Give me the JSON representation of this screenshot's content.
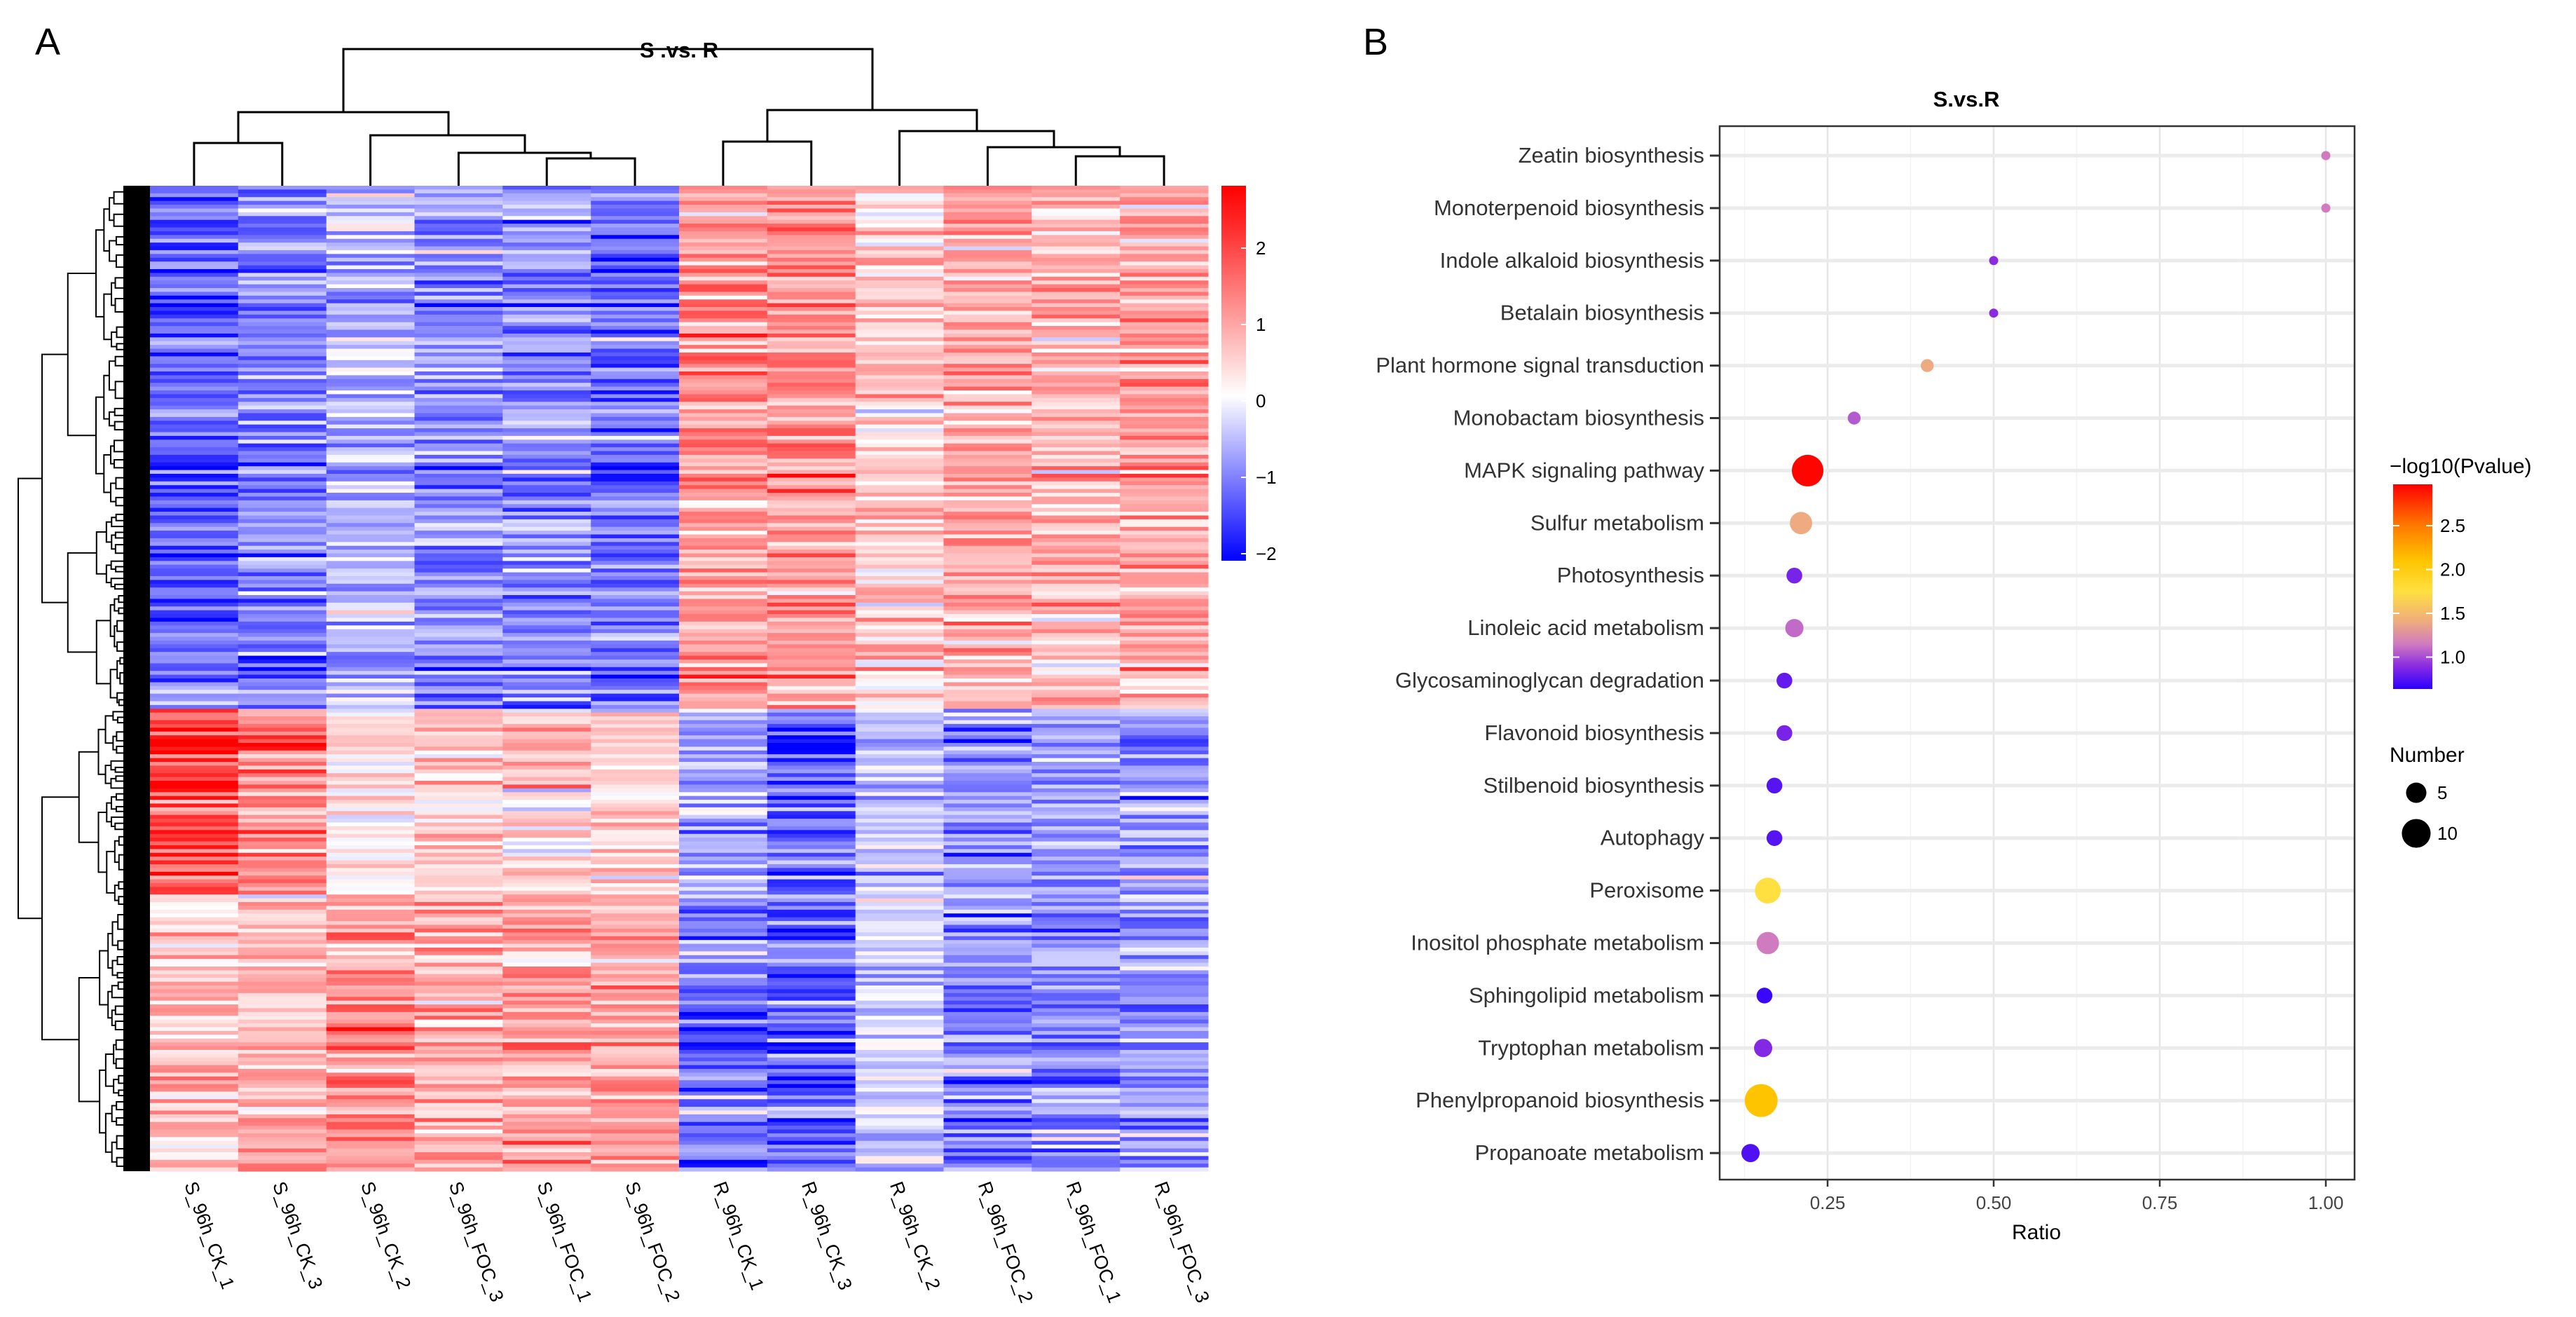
{
  "panels": {
    "a_label": "A",
    "b_label": "B"
  },
  "chart_data": [
    {
      "type": "heatmap",
      "title": "S .vs. R",
      "columns": [
        "S_96h_CK_1",
        "S_96h_CK_3",
        "S_96h_CK_2",
        "S_96h_FOC_3",
        "S_96h_FOC_1",
        "S_96h_FOC_2",
        "R_96h_CK_1",
        "R_96h_CK_3",
        "R_96h_CK_2",
        "R_96h_FOC_2",
        "R_96h_FOC_1",
        "R_96h_FOC_3"
      ],
      "row_clusters": [
        {
          "fraction_of_rows": 0.53,
          "approx_mean_z": [
            -1.3,
            -1.1,
            -0.6,
            -1.1,
            -1.0,
            -1.3,
            1.1,
            1.1,
            0.5,
            0.8,
            0.8,
            0.9
          ]
        },
        {
          "fraction_of_rows": 0.19,
          "approx_mean_z": [
            2.0,
            1.3,
            0.3,
            0.6,
            0.5,
            0.4,
            -1.0,
            -1.4,
            -0.5,
            -1.0,
            -1.0,
            -1.0
          ]
        },
        {
          "fraction_of_rows": 0.28,
          "approx_mean_z": [
            0.6,
            0.7,
            1.1,
            0.9,
            0.9,
            0.9,
            -1.2,
            -1.4,
            -0.3,
            -1.0,
            -1.0,
            -0.9
          ]
        }
      ],
      "colorbar": {
        "ticks": [
          "2",
          "1",
          "0",
          "−1",
          "−2"
        ],
        "tick_values": [
          2,
          1,
          0,
          -1,
          -2
        ],
        "range": [
          -2.2,
          2.8
        ],
        "low_color": "#0000ff",
        "mid_color": "#ffffff",
        "high_color": "#ff0000"
      },
      "row_dendrogram": true,
      "column_dendrogram": true
    },
    {
      "type": "scatter",
      "title": "S.vs.R",
      "xlabel": "Ratio",
      "xlim": [
        0.088,
        1.043
      ],
      "xticks": [
        "0.25",
        "0.50",
        "0.75",
        "1.00"
      ],
      "xtick_values": [
        0.25,
        0.5,
        0.75,
        1.0
      ],
      "grid": true,
      "legend_position": "right",
      "color_legend": {
        "title": "−log10(Pvalue)",
        "ticks": [
          "2.5",
          "2.0",
          "1.5",
          "1.0"
        ],
        "tick_values": [
          2.5,
          2.0,
          1.5,
          1.0
        ],
        "range": [
          0.64,
          2.97
        ],
        "stops": [
          [
            0.64,
            "#2a00ff"
          ],
          [
            0.9,
            "#8a2be2"
          ],
          [
            1.15,
            "#d07ac0"
          ],
          [
            1.4,
            "#eeaa80"
          ],
          [
            1.75,
            "#ffe040"
          ],
          [
            2.1,
            "#ffc400"
          ],
          [
            2.5,
            "#ff7a00"
          ],
          [
            2.97,
            "#ff0000"
          ]
        ]
      },
      "size_legend": {
        "title": "Number",
        "items": [
          {
            "label": "5",
            "value": 5
          },
          {
            "label": "10",
            "value": 10
          }
        ]
      },
      "points": [
        {
          "pathway": "Zeatin biosynthesis",
          "ratio": 1.0,
          "neg_log10_p": 1.15,
          "number": 1
        },
        {
          "pathway": "Monoterpenoid biosynthesis",
          "ratio": 1.0,
          "neg_log10_p": 1.15,
          "number": 1
        },
        {
          "pathway": "Indole alkaloid biosynthesis",
          "ratio": 0.5,
          "neg_log10_p": 0.9,
          "number": 1
        },
        {
          "pathway": "Betalain biosynthesis",
          "ratio": 0.5,
          "neg_log10_p": 0.9,
          "number": 1
        },
        {
          "pathway": "Plant  hormone signal  transduction",
          "ratio": 0.4,
          "neg_log10_p": 1.4,
          "number": 2
        },
        {
          "pathway": "Monobactam biosynthesis",
          "ratio": 0.29,
          "neg_log10_p": 1.05,
          "number": 2
        },
        {
          "pathway": "MAPK signaling pathway",
          "ratio": 0.22,
          "neg_log10_p": 2.95,
          "number": 12
        },
        {
          "pathway": "Sulfur metabolism",
          "ratio": 0.21,
          "neg_log10_p": 1.4,
          "number": 6
        },
        {
          "pathway": "Photosynthesis",
          "ratio": 0.2,
          "neg_log10_p": 0.85,
          "number": 3
        },
        {
          "pathway": "Linoleic acid metabolism",
          "ratio": 0.2,
          "neg_log10_p": 1.1,
          "number": 4
        },
        {
          "pathway": "Glycosaminoglycan degradation",
          "ratio": 0.185,
          "neg_log10_p": 0.8,
          "number": 3
        },
        {
          "pathway": "Flavonoid biosynthesis",
          "ratio": 0.185,
          "neg_log10_p": 0.85,
          "number": 3
        },
        {
          "pathway": "Stilbenoid biosynthesis",
          "ratio": 0.17,
          "neg_log10_p": 0.76,
          "number": 3
        },
        {
          "pathway": "Autophagy",
          "ratio": 0.17,
          "neg_log10_p": 0.76,
          "number": 3
        },
        {
          "pathway": "Peroxisome",
          "ratio": 0.16,
          "neg_log10_p": 1.75,
          "number": 8
        },
        {
          "pathway": "Inositol phosphate metabolism",
          "ratio": 0.16,
          "neg_log10_p": 1.15,
          "number": 6
        },
        {
          "pathway": "Sphingolipid metabolism",
          "ratio": 0.155,
          "neg_log10_p": 0.68,
          "number": 3
        },
        {
          "pathway": "Tryptophan metabolism",
          "ratio": 0.153,
          "neg_log10_p": 0.88,
          "number": 4
        },
        {
          "pathway": "Phenylpropanoid biosynthesis",
          "ratio": 0.15,
          "neg_log10_p": 2.1,
          "number": 13
        },
        {
          "pathway": "Propanoate metabolism",
          "ratio": 0.134,
          "neg_log10_p": 0.74,
          "number": 4
        }
      ]
    }
  ]
}
